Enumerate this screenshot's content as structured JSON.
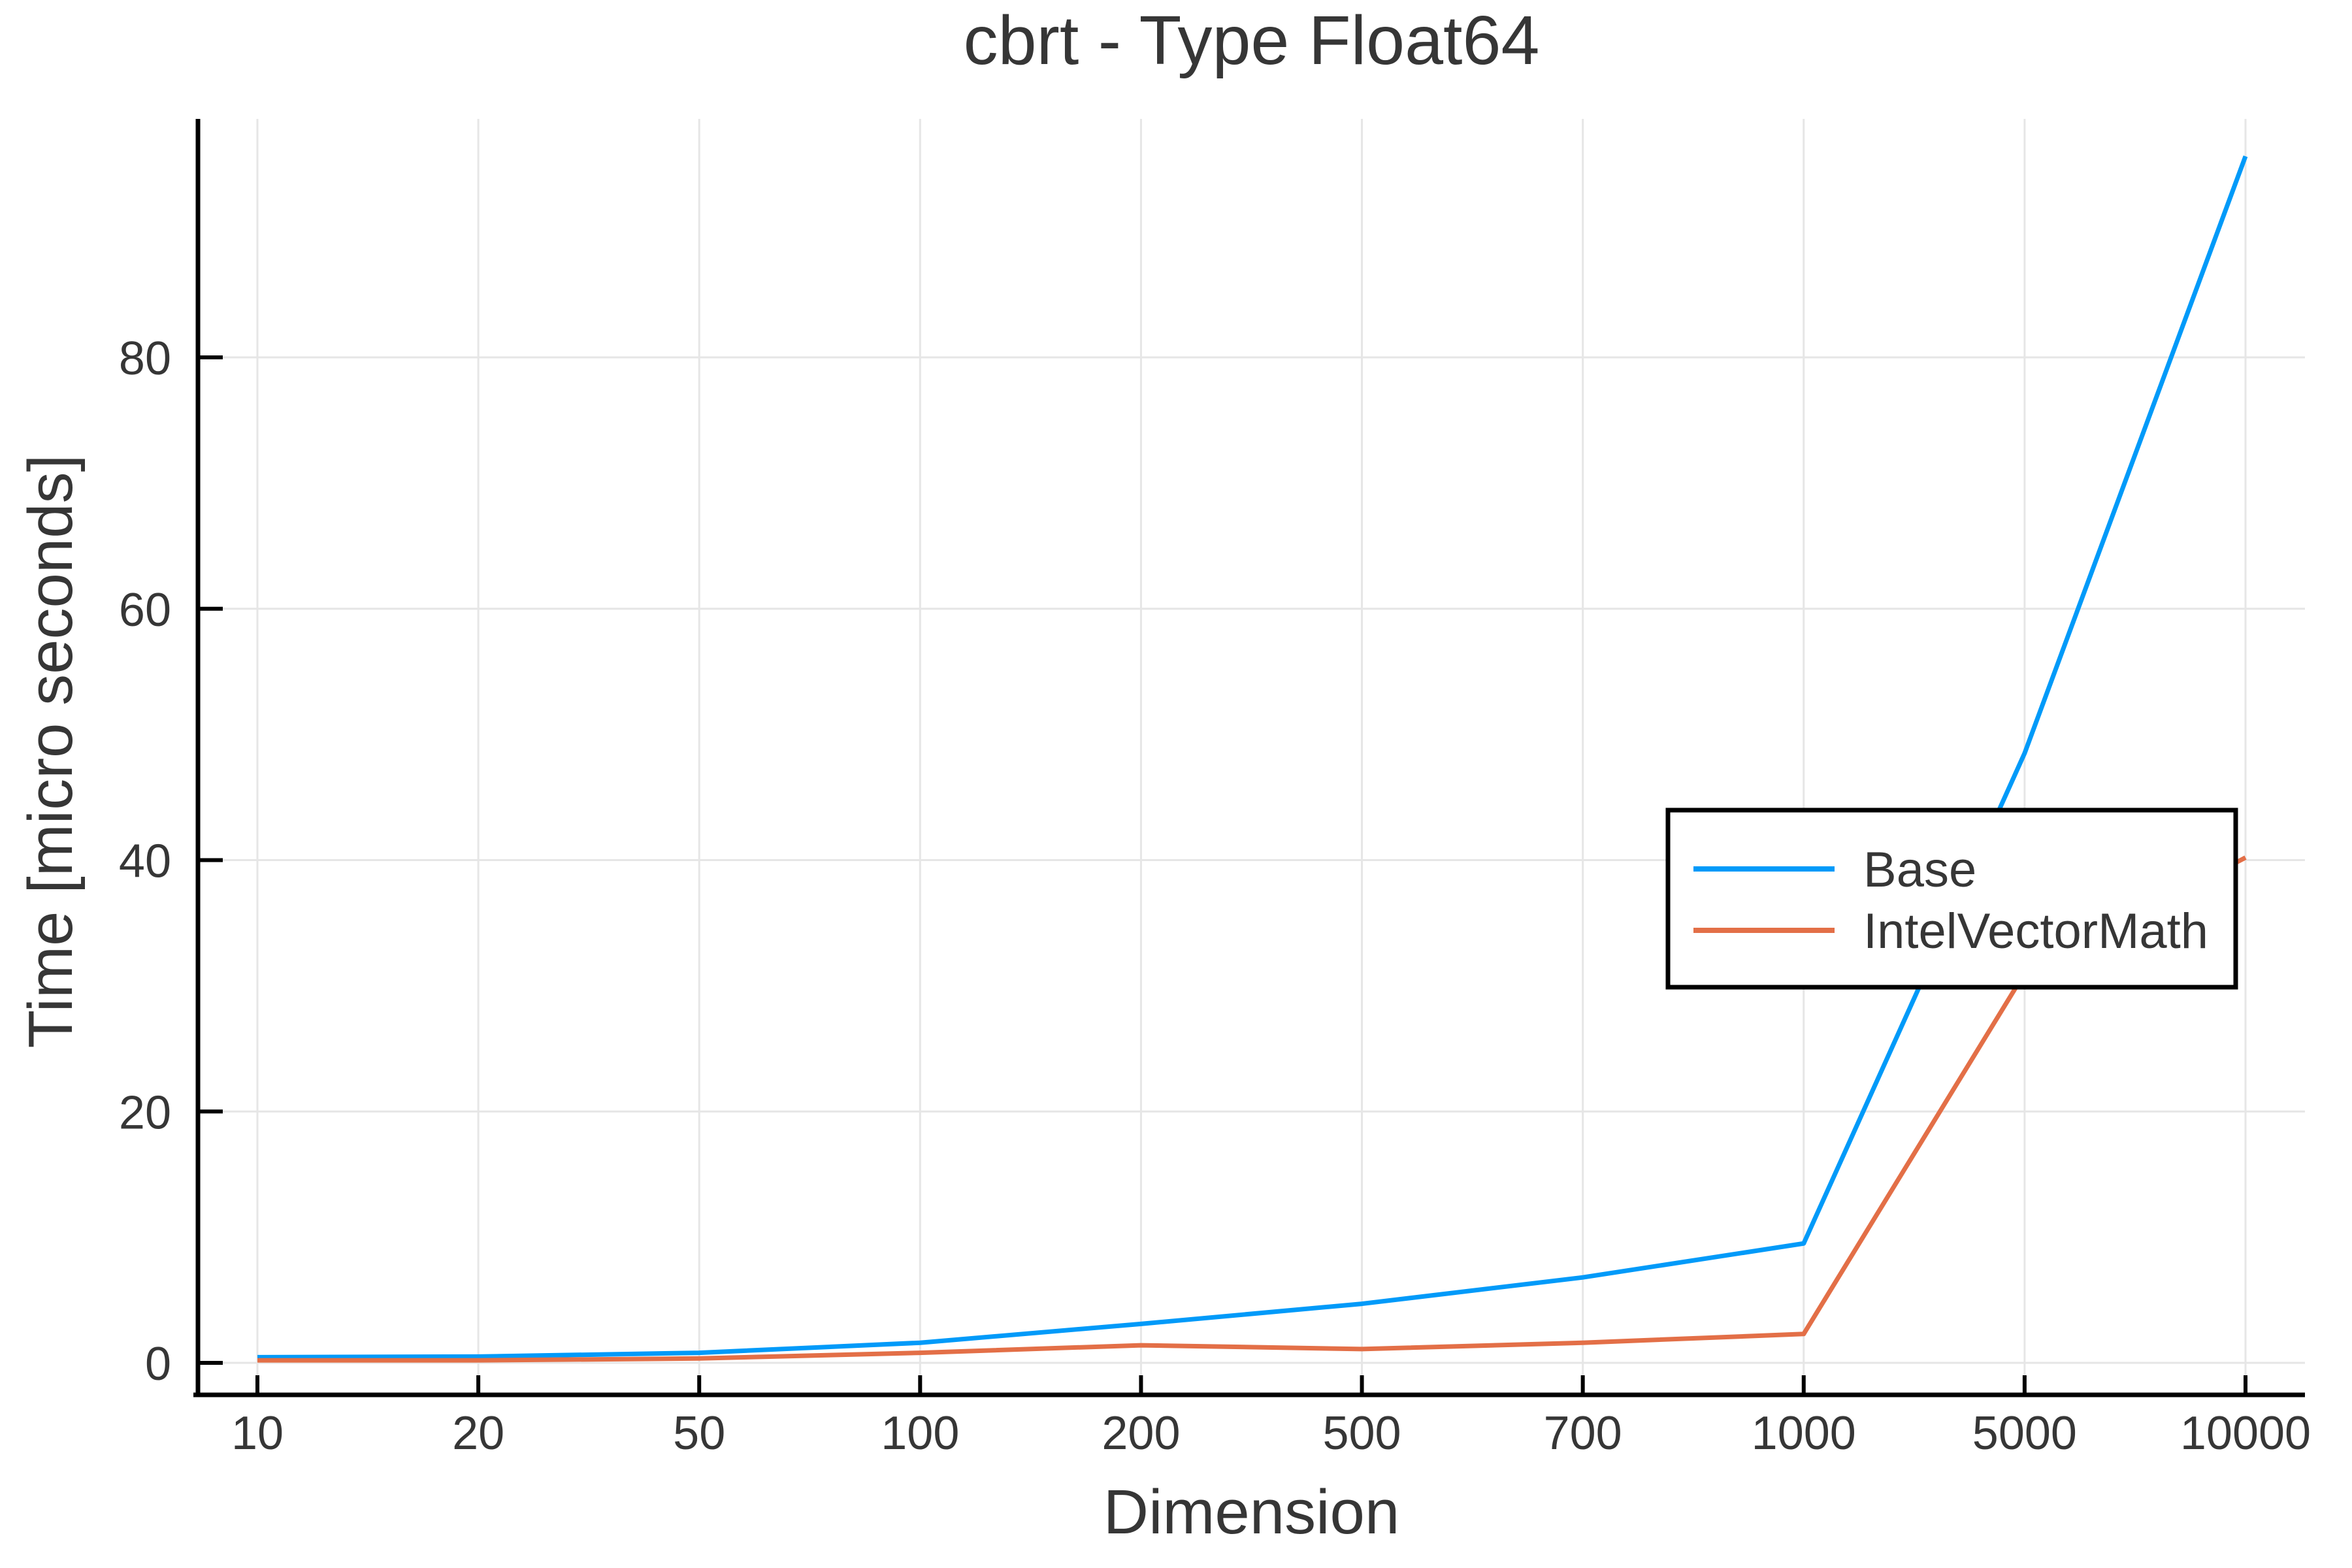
{
  "chart_data": {
    "type": "line",
    "title": "cbrt - Type Float64",
    "xlabel": "Dimension",
    "ylabel": "Time [micro seconds]",
    "x_scale": "categorical-evenly-spaced",
    "categories": [
      10,
      20,
      50,
      100,
      200,
      500,
      700,
      1000,
      5000,
      10000
    ],
    "series": [
      {
        "name": "Base",
        "color": "#009AF9",
        "values": [
          0.45,
          0.5,
          0.8,
          1.6,
          3.1,
          4.7,
          6.8,
          9.5,
          48.5,
          96.0
        ]
      },
      {
        "name": "IntelVectorMath",
        "color": "#E36F47",
        "values": [
          0.2,
          0.2,
          0.35,
          0.8,
          1.4,
          1.1,
          1.6,
          2.3,
          31.0,
          40.2
        ]
      }
    ],
    "yticks": [
      0,
      20,
      40,
      60,
      80
    ],
    "ylim": [
      -2.5,
      99
    ],
    "grid": true,
    "grid_color": "#E6E6E6",
    "axis_color": "#000000",
    "text_color": "#363636",
    "background": "#FFFFFF",
    "legend": {
      "position": "right-middle",
      "border_color": "#000000",
      "fill": "#FFFFFF",
      "entries": [
        "Base",
        "IntelVectorMath"
      ]
    }
  }
}
